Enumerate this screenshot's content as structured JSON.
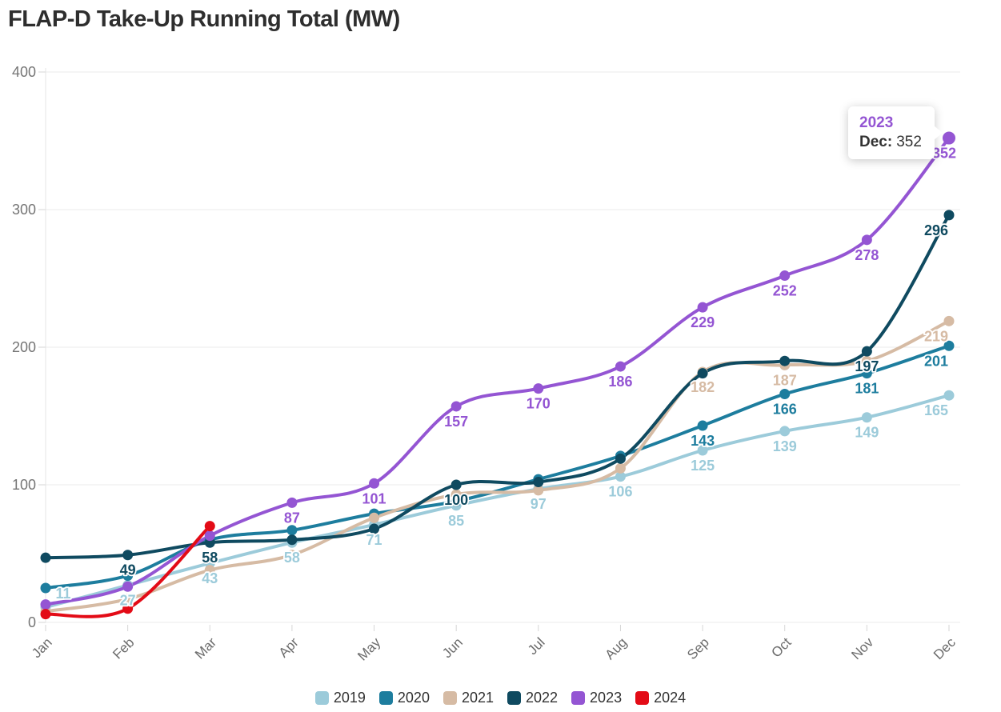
{
  "title": "FLAP-D Take-Up Running Total (MW)",
  "chart_data": {
    "type": "line",
    "title": "FLAP-D Take-Up Running Total (MW)",
    "x": [
      "Jan",
      "Feb",
      "Mar",
      "Apr",
      "May",
      "Jun",
      "Jul",
      "Aug",
      "Sep",
      "Oct",
      "Nov",
      "Dec"
    ],
    "xlabel": "",
    "ylabel": "",
    "ylim": [
      0,
      400
    ],
    "yticks": [
      0,
      100,
      200,
      300,
      400
    ],
    "grid": "horizontal",
    "legend_position": "bottom",
    "curve": "smooth",
    "series": [
      {
        "name": "2019",
        "color": "#9ccbda",
        "values": [
          11,
          27,
          43,
          58,
          71,
          85,
          97,
          106,
          125,
          139,
          149,
          165
        ],
        "labeled_points": [
          0,
          1,
          2,
          3,
          4,
          5,
          6,
          7,
          8,
          9,
          10,
          11
        ]
      },
      {
        "name": "2020",
        "color": "#1d7d9e",
        "values": [
          25,
          34,
          60,
          67,
          79,
          88,
          104,
          121,
          143,
          166,
          181,
          201
        ],
        "labeled_points": [
          8,
          9,
          10,
          11
        ]
      },
      {
        "name": "2021",
        "color": "#d6bba4",
        "values": [
          8,
          17,
          38,
          49,
          76,
          93,
          96,
          112,
          182,
          187,
          190,
          219
        ],
        "labeled_points": [
          8,
          9,
          11
        ]
      },
      {
        "name": "2022",
        "color": "#0f4a60",
        "values": [
          47,
          49,
          58,
          60,
          68,
          100,
          102,
          119,
          181,
          190,
          197,
          296
        ],
        "labeled_points": [
          1,
          2,
          5,
          10,
          11
        ]
      },
      {
        "name": "2023",
        "color": "#9455d3",
        "values": [
          13,
          26,
          63,
          87,
          101,
          157,
          170,
          186,
          229,
          252,
          278,
          352
        ],
        "labeled_points": [
          3,
          4,
          5,
          6,
          7,
          8,
          9,
          10,
          11
        ]
      },
      {
        "name": "2024",
        "color": "#e30b16",
        "values": [
          6,
          10,
          70,
          null,
          null,
          null,
          null,
          null,
          null,
          null,
          null,
          null
        ],
        "labeled_points": []
      }
    ]
  },
  "tooltip": {
    "series": "2023",
    "series_color": "#9455d3",
    "month": "Dec",
    "month_label": "Dec:",
    "value": 352
  },
  "colors": {
    "grid": "#ebebeb",
    "axis_text": "#757575",
    "title_text": "#2e2e2e",
    "legend_text": "#333333"
  }
}
